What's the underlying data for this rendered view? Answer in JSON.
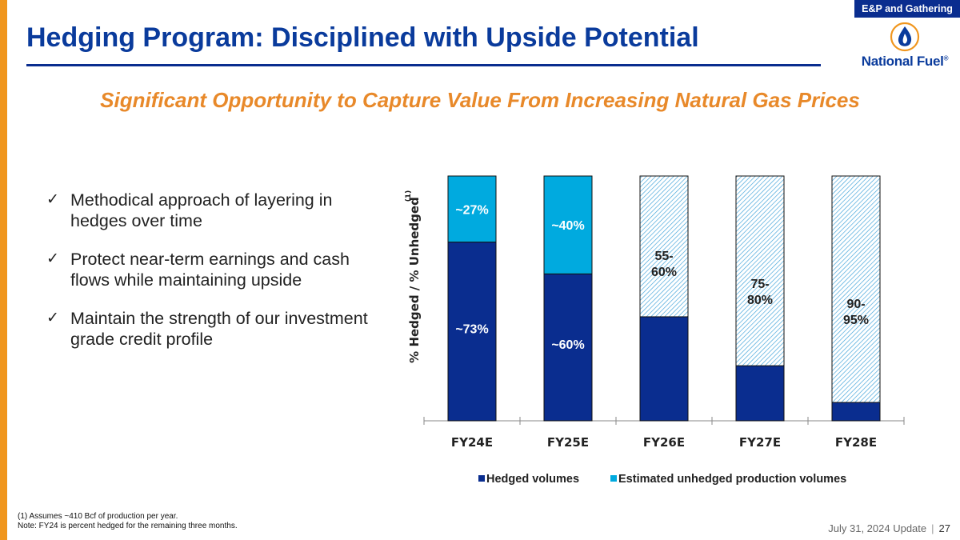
{
  "header": {
    "tag": "E&P and Gathering",
    "title": "Hedging Program: Disciplined with Upside Potential",
    "logo_text": "National Fuel",
    "logo_reg": "®"
  },
  "subtitle": "Significant Opportunity to Capture Value From Increasing Natural Gas Prices",
  "bullets": [
    "Methodical approach of layering in hedges over time",
    "Protect near-term earnings and cash flows while maintaining upside",
    "Maintain the strength of our investment grade credit profile"
  ],
  "chart_data": {
    "type": "bar",
    "stacked": true,
    "categories": [
      "FY24E",
      "FY25E",
      "FY26E",
      "FY27E",
      "FY28E"
    ],
    "series": [
      {
        "name": "Hedged volumes",
        "values": [
          73,
          60,
          42.5,
          22.5,
          7.5
        ],
        "color": "#0a2d8f",
        "labels": [
          "~73%",
          "~60%",
          "",
          "",
          ""
        ]
      },
      {
        "name": "Estimated unhedged production volumes",
        "values": [
          27,
          40,
          57.5,
          77.5,
          92.5
        ],
        "color": "#00aadf",
        "labels": [
          "~27%",
          "~40%",
          "55-\n60%",
          "75-\n80%",
          "90-\n95%"
        ],
        "hatched": [
          false,
          false,
          true,
          true,
          true
        ]
      }
    ],
    "ylabel": "% Hedged / % Unhedged",
    "ylabel_superscript": "(1)",
    "ylim": [
      0,
      100
    ],
    "grid": false,
    "legend": "bottom"
  },
  "footnotes": [
    "(1)  Assumes ~410 Bcf of production per year.",
    "Note: FY24 is percent hedged for the remaining three months."
  ],
  "footer": {
    "date": "July 31, 2024 Update",
    "separator": "|",
    "page": "27"
  }
}
